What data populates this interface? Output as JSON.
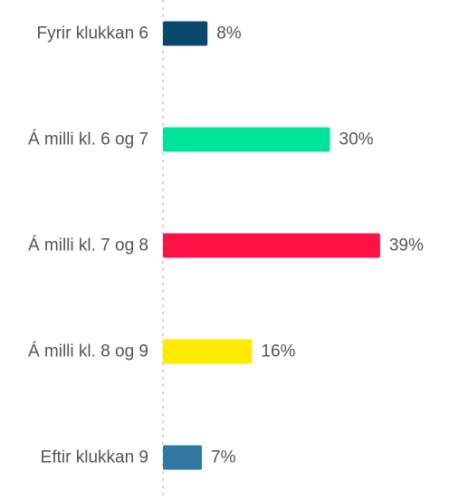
{
  "chart_data": {
    "type": "bar",
    "orientation": "horizontal",
    "categories": [
      "Fyrir klukkan 6",
      "Á milli kl. 6 og 7",
      "Á milli kl. 7 og 8",
      "Á milli kl. 8 og 9",
      "Eftir klukkan 9"
    ],
    "values": [
      8,
      30,
      39,
      16,
      7
    ],
    "value_labels": [
      "8%",
      "30%",
      "39%",
      "16%",
      "7%"
    ],
    "colors": [
      "#08496b",
      "#00e39a",
      "#ff1146",
      "#ffeb00",
      "#3378a0"
    ],
    "unit": "%",
    "xlim": [
      0,
      40
    ],
    "grid": false,
    "baseline": "dotted"
  }
}
